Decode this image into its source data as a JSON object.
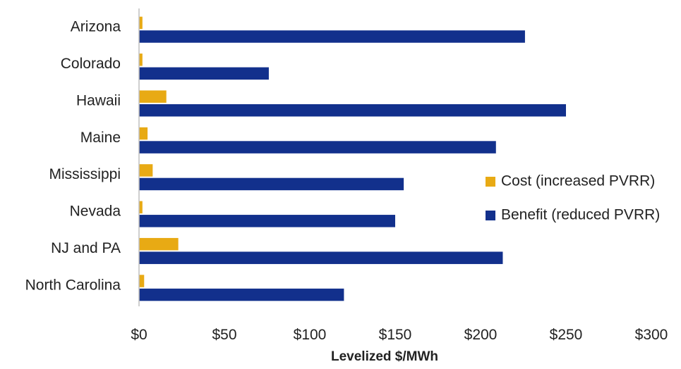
{
  "chart_data": {
    "type": "bar",
    "orientation": "horizontal",
    "categories": [
      "Arizona",
      "Colorado",
      "Hawaii",
      "Maine",
      "Mississippi",
      "Nevada",
      "NJ and PA",
      "North Carolina"
    ],
    "series": [
      {
        "name": "Cost (increased PVRR)",
        "color": "#E8AA14",
        "values": [
          2,
          2,
          16,
          5,
          8,
          2,
          23,
          3
        ]
      },
      {
        "name": "Benefit (reduced PVRR)",
        "color": "#12308C",
        "values": [
          226,
          76,
          250,
          209,
          155,
          150,
          213,
          120
        ]
      }
    ],
    "xlabel": "Levelized $/MWh",
    "ylabel": "",
    "xlim": [
      0,
      300
    ],
    "xticks": [
      0,
      50,
      100,
      150,
      200,
      250,
      300
    ],
    "xtick_labels": [
      "$0",
      "$50",
      "$100",
      "$150",
      "$200",
      "$250",
      "$300"
    ],
    "grid": false,
    "legend_position": "right"
  }
}
